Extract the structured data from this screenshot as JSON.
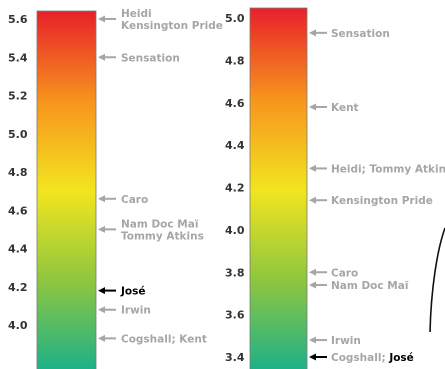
{
  "chart_data": [
    {
      "type": "scale",
      "ticks": [
        "5.6",
        "5.4",
        "5.2",
        "5.0",
        "4.8",
        "4.6",
        "4.4",
        "4.2",
        "4.0"
      ],
      "tick_values": [
        5.6,
        5.4,
        5.2,
        5.0,
        4.8,
        4.6,
        4.4,
        4.2,
        4.0
      ],
      "ylim": [
        3.9,
        5.65
      ],
      "annotations": [
        {
          "value": 5.6,
          "lines": [
            "Heidi",
            "Kensington Pride"
          ],
          "highlight": false
        },
        {
          "value": 5.4,
          "lines": [
            "Sensation"
          ],
          "highlight": false
        },
        {
          "value": 4.66,
          "lines": [
            "Caro"
          ],
          "highlight": false
        },
        {
          "value": 4.5,
          "lines": [
            "Nam Doc Maï",
            "Tommy Atkins"
          ],
          "highlight": false
        },
        {
          "value": 4.18,
          "lines": [
            "José"
          ],
          "highlight": true
        },
        {
          "value": 4.08,
          "lines": [
            "Irwin"
          ],
          "highlight": false
        },
        {
          "value": 3.93,
          "lines": [
            "Cogshall; Kent"
          ],
          "highlight": false
        }
      ]
    },
    {
      "type": "scale",
      "ticks": [
        "5.0",
        "4.8",
        "4.6",
        "4.4",
        "4.2",
        "4.0",
        "3.8",
        "3.6",
        "3.4"
      ],
      "tick_values": [
        5.0,
        4.8,
        4.6,
        4.4,
        4.2,
        4.0,
        3.8,
        3.6,
        3.4
      ],
      "ylim": [
        3.37,
        5.05
      ],
      "annotations": [
        {
          "value": 4.93,
          "lines": [
            "Sensation"
          ],
          "highlight": false
        },
        {
          "value": 4.58,
          "lines": [
            "Kent"
          ],
          "highlight": false
        },
        {
          "value": 4.29,
          "lines": [
            "Heidi; Tommy Atkins"
          ],
          "highlight": false
        },
        {
          "value": 4.14,
          "lines": [
            "Kensington Pride"
          ],
          "highlight": false
        },
        {
          "value": 3.8,
          "lines": [
            "Caro"
          ],
          "highlight": false
        },
        {
          "value": 3.74,
          "lines": [
            "Nam Doc Maï"
          ],
          "highlight": false
        },
        {
          "value": 3.48,
          "lines": [
            "Irwin"
          ],
          "highlight": false
        },
        {
          "value": 3.4,
          "lines": [
            "Cogshall; ",
            "José"
          ],
          "highlight_part": 1
        }
      ]
    }
  ],
  "colors": {
    "gradient": [
      "#e8202a",
      "#f7941d",
      "#f2e51f",
      "#8dc63f",
      "#1bb08a"
    ],
    "label_gray": "#a6a6a6",
    "highlight": "#000000",
    "tick": "#333333"
  }
}
